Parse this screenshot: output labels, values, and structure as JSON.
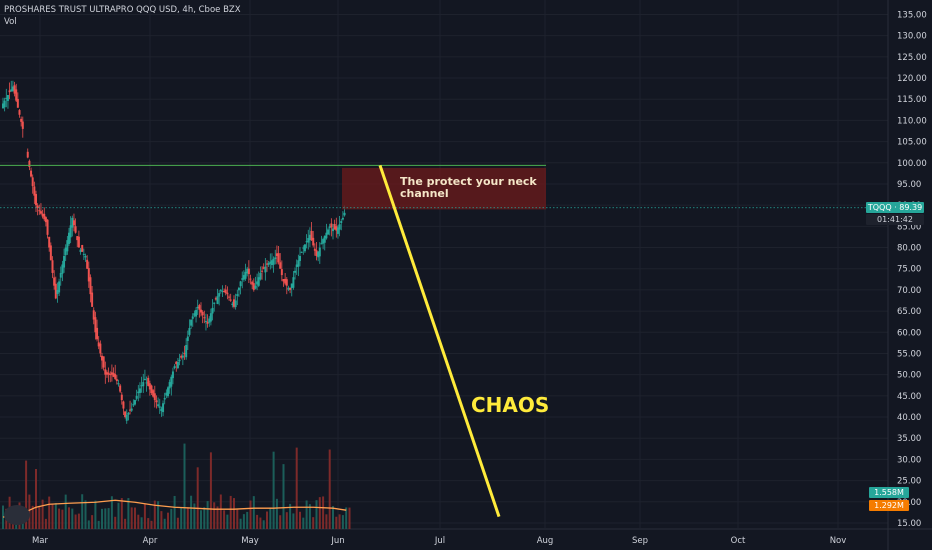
{
  "header": {
    "title": "PROSHARES TRUST ULTRAPRO QQQ USD, 4h, Cboe BZX",
    "volume_label": "Vol"
  },
  "tags": {
    "price": "TQQQ · 89.39",
    "countdown": "01:41:42",
    "vol_a": "1.558M",
    "vol_b": "1.292M"
  },
  "annotations": {
    "zone_text": "The protect your neck channel",
    "chaos_text": "CHAOS"
  },
  "colors": {
    "background": "#131722",
    "up": "#26a69a",
    "down": "#ef5350",
    "vol_up": "#1b5e59",
    "vol_down": "#7d2a2a",
    "ma": "#ff9e4f",
    "resistance": "#4caf50",
    "zone": "#6d1b1b",
    "arrow": "#ffeb3b",
    "text": "#d1d4dc"
  },
  "chart_data": {
    "type": "candlestick",
    "title": "PROSHARES TRUST ULTRAPRO QQQ USD, 4h, Cboe BZX",
    "y_range": [
      13,
      137
    ],
    "y_ticks": [
      15,
      20,
      25,
      30,
      35,
      40,
      45,
      50,
      55,
      60,
      65,
      70,
      75,
      80,
      85,
      90,
      95,
      100,
      105,
      110,
      115,
      120,
      125,
      130,
      135
    ],
    "x_ticks": [
      "Mar",
      "Apr",
      "May",
      "Jun",
      "Jul",
      "Aug",
      "Sep",
      "Oct",
      "Nov"
    ],
    "last_price": 89.39,
    "resistance_level": 99.4,
    "zone": {
      "from": 89.0,
      "to": 98.8
    },
    "projection": {
      "from_value": 99.4,
      "to_value": 16.5
    },
    "price_path": [
      {
        "d": 0,
        "v": 114
      },
      {
        "d": 3,
        "v": 118
      },
      {
        "d": 6,
        "v": 108
      },
      {
        "d": 8,
        "v": 99
      },
      {
        "d": 10,
        "v": 90
      },
      {
        "d": 13,
        "v": 86
      },
      {
        "d": 16,
        "v": 68
      },
      {
        "d": 19,
        "v": 80
      },
      {
        "d": 21,
        "v": 87
      },
      {
        "d": 23,
        "v": 80
      },
      {
        "d": 25,
        "v": 78
      },
      {
        "d": 28,
        "v": 60
      },
      {
        "d": 31,
        "v": 50
      },
      {
        "d": 33,
        "v": 50
      },
      {
        "d": 35,
        "v": 48
      },
      {
        "d": 37,
        "v": 40
      },
      {
        "d": 39,
        "v": 42
      },
      {
        "d": 41,
        "v": 46
      },
      {
        "d": 43,
        "v": 49
      },
      {
        "d": 46,
        "v": 44
      },
      {
        "d": 48,
        "v": 42
      },
      {
        "d": 50,
        "v": 47
      },
      {
        "d": 52,
        "v": 52
      },
      {
        "d": 55,
        "v": 55
      },
      {
        "d": 57,
        "v": 63
      },
      {
        "d": 59,
        "v": 66
      },
      {
        "d": 62,
        "v": 62
      },
      {
        "d": 64,
        "v": 67
      },
      {
        "d": 66,
        "v": 70
      },
      {
        "d": 68,
        "v": 69
      },
      {
        "d": 70,
        "v": 66
      },
      {
        "d": 72,
        "v": 72
      },
      {
        "d": 74,
        "v": 75
      },
      {
        "d": 76,
        "v": 70
      },
      {
        "d": 78,
        "v": 74
      },
      {
        "d": 80,
        "v": 76
      },
      {
        "d": 83,
        "v": 78
      },
      {
        "d": 85,
        "v": 72
      },
      {
        "d": 87,
        "v": 70
      },
      {
        "d": 89,
        "v": 76
      },
      {
        "d": 91,
        "v": 80
      },
      {
        "d": 93,
        "v": 83
      },
      {
        "d": 95,
        "v": 78
      },
      {
        "d": 97,
        "v": 82
      },
      {
        "d": 99,
        "v": 85
      },
      {
        "d": 101,
        "v": 84
      },
      {
        "d": 103,
        "v": 87
      },
      {
        "d": 104,
        "v": 89.39
      }
    ],
    "volume_ma": [
      {
        "d": 0,
        "v": 12
      },
      {
        "d": 6,
        "v": 16
      },
      {
        "d": 10,
        "v": 22
      },
      {
        "d": 14,
        "v": 25
      },
      {
        "d": 20,
        "v": 26
      },
      {
        "d": 28,
        "v": 27
      },
      {
        "d": 34,
        "v": 29
      },
      {
        "d": 40,
        "v": 27
      },
      {
        "d": 46,
        "v": 24
      },
      {
        "d": 52,
        "v": 22
      },
      {
        "d": 58,
        "v": 21
      },
      {
        "d": 64,
        "v": 20
      },
      {
        "d": 70,
        "v": 20
      },
      {
        "d": 76,
        "v": 21
      },
      {
        "d": 82,
        "v": 21
      },
      {
        "d": 88,
        "v": 22
      },
      {
        "d": 94,
        "v": 22
      },
      {
        "d": 100,
        "v": 21
      },
      {
        "d": 104,
        "v": 19
      }
    ]
  }
}
